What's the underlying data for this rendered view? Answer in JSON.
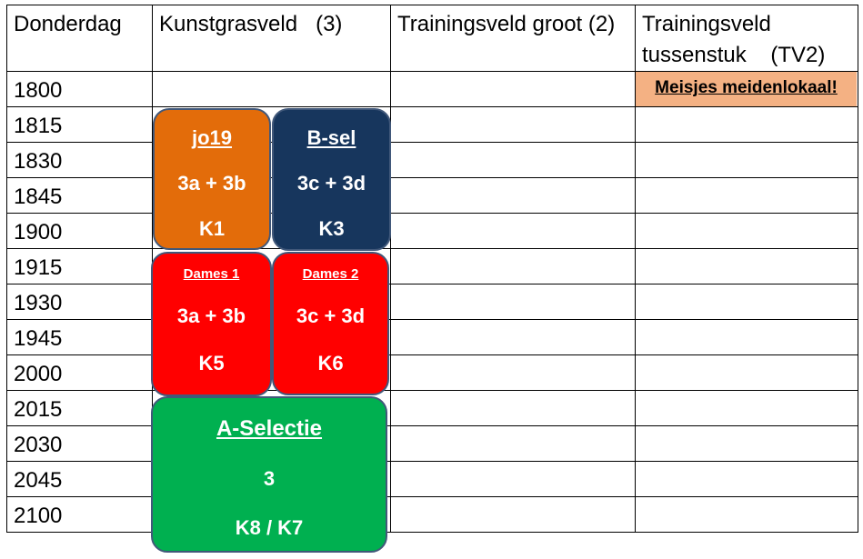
{
  "headers": [
    "Donderdag",
    "Kunstgrasveld   (3)",
    "Trainingsveld groot (2)",
    "Trainingsveld tussenstuk    (TV2)"
  ],
  "times": [
    "1800",
    "1815",
    "1830",
    "1845",
    "1900",
    "1915",
    "1930",
    "1945",
    "2000",
    "2015",
    "2030",
    "2045",
    "2100"
  ],
  "notice": {
    "text": "Meisjes meidenlokaal!",
    "color": "#f4b183"
  },
  "blocks": [
    {
      "title": "jo19",
      "teams": "3a + 3b",
      "room": "K1",
      "color": "#e36c0a"
    },
    {
      "title": "B-sel",
      "teams": "3c + 3d",
      "room": "K3",
      "color": "#17365d"
    },
    {
      "title": "Dames 1",
      "teams": "3a + 3b",
      "room": "K5",
      "color": "#ff0000"
    },
    {
      "title": "Dames 2",
      "teams": "3c + 3d",
      "room": "K6",
      "color": "#ff0000"
    },
    {
      "title": "A-Selectie",
      "teams": "3",
      "room": "K8 / K7",
      "color": "#00b050"
    }
  ]
}
